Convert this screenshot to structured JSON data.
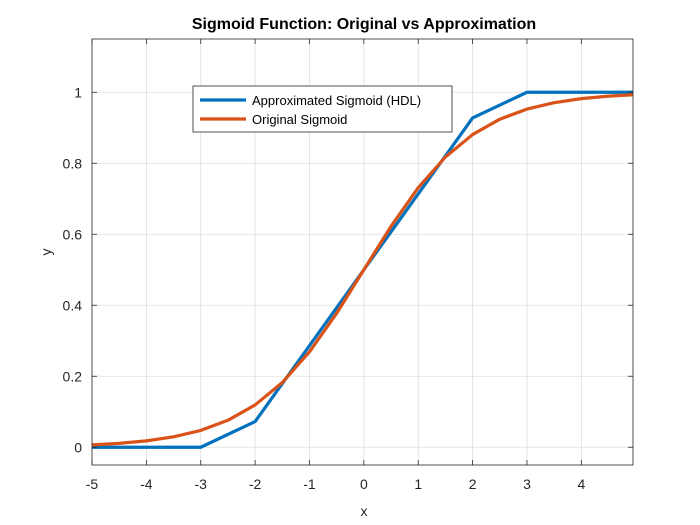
{
  "chart_data": {
    "type": "line",
    "title": "Sigmoid Function: Original vs Approximation",
    "xlabel": "x",
    "ylabel": "y",
    "xlim": [
      -5,
      4.95
    ],
    "ylim": [
      -0.05,
      1.15
    ],
    "xticks": [
      -5,
      -4,
      -3,
      -2,
      -1,
      0,
      1,
      2,
      3,
      4
    ],
    "xtick_labels": [
      "-5",
      "-4",
      "-3",
      "-2",
      "-1",
      "0",
      "1",
      "2",
      "3",
      "4"
    ],
    "yticks": [
      0,
      0.2,
      0.4,
      0.6,
      0.8,
      1
    ],
    "ytick_labels": [
      "0",
      "0.2",
      "0.4",
      "0.6",
      "0.8",
      "1"
    ],
    "grid": true,
    "legend_position": "top-center",
    "series": [
      {
        "name": "Approximated Sigmoid (HDL)",
        "color": "#0072BD",
        "x": [
          -5,
          -3,
          -2,
          0,
          2,
          3,
          4.95
        ],
        "y": [
          0,
          0,
          0.0725,
          0.5,
          0.9275,
          1,
          1
        ]
      },
      {
        "name": "Original Sigmoid",
        "color": "#D95319",
        "x": [
          -5,
          -4.5,
          -4,
          -3.5,
          -3,
          -2.5,
          -2,
          -1.5,
          -1,
          -0.5,
          0,
          0.5,
          1,
          1.5,
          2,
          2.5,
          3,
          3.5,
          4,
          4.5,
          4.95
        ],
        "y": [
          0.0067,
          0.011,
          0.018,
          0.0293,
          0.0474,
          0.0759,
          0.1192,
          0.1824,
          0.2689,
          0.3775,
          0.5,
          0.6225,
          0.7311,
          0.8176,
          0.8808,
          0.9241,
          0.9526,
          0.9707,
          0.982,
          0.989,
          0.993
        ]
      }
    ]
  }
}
